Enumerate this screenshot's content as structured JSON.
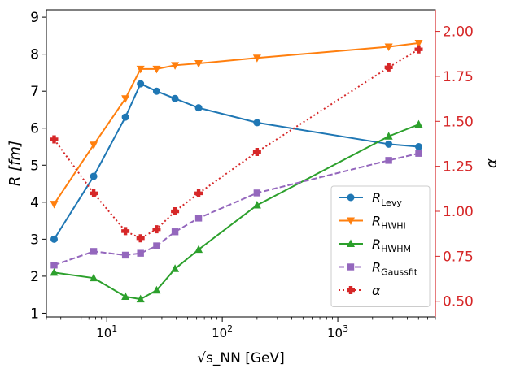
{
  "chart_data": {
    "type": "line",
    "title": "",
    "xlabel": "√s_NN [GeV]",
    "ylabel": "R [fm]",
    "y2label": "α",
    "xscale": "log",
    "xlim": [
      3.0,
      7000
    ],
    "ylim": [
      0.9,
      9.2
    ],
    "y2lim": [
      0.413,
      2.12
    ],
    "x_ticks": [
      {
        "value": 10,
        "base": "10",
        "exp": "1"
      },
      {
        "value": 100,
        "base": "10",
        "exp": "2"
      },
      {
        "value": 1000,
        "base": "10",
        "exp": "3"
      }
    ],
    "y_ticks": [
      1,
      2,
      3,
      4,
      5,
      6,
      7,
      8,
      9
    ],
    "y_tick_labels": [
      "1",
      "2",
      "3",
      "4",
      "5",
      "6",
      "7",
      "8",
      "9"
    ],
    "y2_ticks": [
      0.5,
      0.75,
      1.0,
      1.25,
      1.5,
      1.75,
      2.0
    ],
    "y2_tick_labels": [
      "0.50",
      "0.75",
      "1.00",
      "1.25",
      "1.50",
      "1.75",
      "2.00"
    ],
    "legend_position": "center-right",
    "series": [
      {
        "name": "R_Levy",
        "label_main": "R",
        "label_sub": "Levy",
        "color": "#1f77b4",
        "marker": "circle",
        "linestyle": "solid",
        "axis": "left",
        "x": [
          3.5,
          7.7,
          14.5,
          19.6,
          27,
          39,
          62.4,
          200,
          2760,
          5020
        ],
        "values": [
          3.0,
          4.7,
          6.3,
          7.2,
          7.0,
          6.8,
          6.55,
          6.15,
          5.57,
          5.5
        ]
      },
      {
        "name": "R_HWHI",
        "label_main": "R",
        "label_sub": "HWHI",
        "color": "#ff7f0e",
        "marker": "triangle-down",
        "linestyle": "solid",
        "axis": "left",
        "x": [
          3.5,
          7.7,
          14.5,
          19.6,
          27,
          39,
          62.4,
          200,
          2760,
          5020
        ],
        "values": [
          3.95,
          5.55,
          6.8,
          7.6,
          7.6,
          7.7,
          7.75,
          7.9,
          8.2,
          8.3
        ]
      },
      {
        "name": "R_HWHM",
        "label_main": "R",
        "label_sub": "HWHM",
        "color": "#2ca02c",
        "marker": "triangle-up",
        "linestyle": "solid",
        "axis": "left",
        "x": [
          3.5,
          7.7,
          14.5,
          19.6,
          27,
          39,
          62.4,
          200,
          2760,
          5020
        ],
        "values": [
          2.1,
          1.95,
          1.45,
          1.38,
          1.62,
          2.2,
          2.72,
          3.92,
          5.78,
          6.1
        ]
      },
      {
        "name": "R_Gaussfit",
        "label_main": "R",
        "label_sub": "Gaussfit",
        "color": "#9467bd",
        "marker": "square",
        "linestyle": "dashed",
        "axis": "left",
        "x": [
          3.5,
          7.7,
          14.5,
          19.6,
          27,
          39,
          62.4,
          200,
          2760,
          5020
        ],
        "values": [
          2.3,
          2.67,
          2.57,
          2.62,
          2.82,
          3.2,
          3.57,
          4.25,
          5.13,
          5.32
        ]
      },
      {
        "name": "α",
        "label_main": "α",
        "label_sub": "",
        "color": "#d62728",
        "marker": "plus",
        "linestyle": "dotted",
        "axis": "right",
        "x": [
          3.5,
          7.7,
          14.5,
          19.6,
          27,
          39,
          62.4,
          200,
          2760,
          5020
        ],
        "values": [
          1.4,
          1.1,
          0.89,
          0.85,
          0.9,
          1.0,
          1.1,
          1.33,
          1.8,
          1.9
        ]
      }
    ]
  }
}
